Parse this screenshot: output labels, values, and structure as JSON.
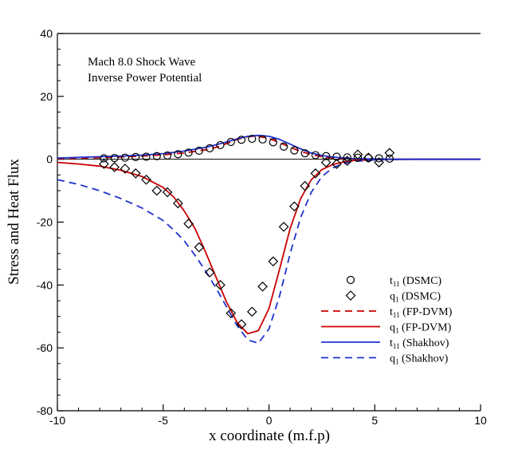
{
  "chart_data": {
    "type": "line",
    "annotation_lines": [
      "Mach 8.0 Shock Wave",
      "Inverse Power Potential"
    ],
    "xlabel": "x coordinate (m.f.p)",
    "ylabel": "Stress and Heat Flux",
    "xlim": [
      -10,
      10
    ],
    "ylim": [
      -80,
      40
    ],
    "xticks": [
      -10,
      -5,
      0,
      5,
      10
    ],
    "yticks": [
      -80,
      -60,
      -40,
      -20,
      0,
      20,
      40
    ],
    "x_minor_step": 1,
    "y_minor_step": 5,
    "grid": false,
    "legend_position": "bottom-right",
    "series": [
      {
        "name": "t11 (DSMC)",
        "legend_main": "t",
        "legend_sub": "11",
        "legend_rest": " (DSMC)",
        "style": "circle-markers",
        "color": "#000000",
        "x": [
          -7.8,
          -7.3,
          -6.8,
          -6.3,
          -5.8,
          -5.3,
          -4.8,
          -4.3,
          -3.8,
          -3.3,
          -2.8,
          -2.3,
          -1.8,
          -1.3,
          -0.8,
          -0.3,
          0.2,
          0.7,
          1.2,
          1.7,
          2.2,
          2.7,
          3.2,
          3.7,
          4.2,
          4.7,
          5.2,
          5.7
        ],
        "y": [
          0.3,
          0.4,
          0.5,
          0.7,
          0.8,
          1.0,
          1.2,
          1.6,
          2.1,
          2.7,
          3.5,
          4.5,
          5.5,
          6.2,
          6.5,
          6.3,
          5.4,
          4.0,
          2.8,
          1.9,
          1.3,
          1.0,
          0.8,
          0.6,
          0.5,
          0.4,
          0.3,
          0.2
        ]
      },
      {
        "name": "q1 (DSMC)",
        "legend_main": "q",
        "legend_sub": "1",
        "legend_rest": " (DSMC)",
        "style": "diamond-markers",
        "color": "#000000",
        "x": [
          -7.8,
          -7.3,
          -6.8,
          -6.3,
          -5.8,
          -5.3,
          -4.8,
          -4.3,
          -3.8,
          -3.3,
          -2.8,
          -2.3,
          -1.8,
          -1.3,
          -0.8,
          -0.3,
          0.2,
          0.7,
          1.2,
          1.7,
          2.2,
          2.7,
          3.2,
          3.7,
          4.2,
          4.7,
          5.2,
          5.7
        ],
        "y": [
          -1.5,
          -2.5,
          -3.0,
          -4.5,
          -6.5,
          -10.0,
          -10.5,
          -14.0,
          -20.5,
          -28.0,
          -36.0,
          -40.0,
          -49.0,
          -52.5,
          -48.5,
          -40.5,
          -32.5,
          -21.5,
          -15.0,
          -8.5,
          -4.5,
          -1.0,
          -1.5,
          -0.5,
          1.5,
          0.5,
          -1.0,
          2.0
        ]
      },
      {
        "name": "t11 (FP-DVM)",
        "legend_main": "t",
        "legend_sub": "11",
        "legend_rest": " (FP-DVM)",
        "style": "dashed",
        "color": "#cc0000",
        "x": [
          -10,
          -9,
          -8,
          -7,
          -6,
          -5,
          -4,
          -3,
          -2.5,
          -2,
          -1.5,
          -1,
          -0.5,
          0,
          0.5,
          1,
          1.5,
          2,
          2.5,
          3,
          4,
          5,
          6,
          7,
          8,
          9,
          10
        ],
        "y": [
          0.2,
          0.3,
          0.5,
          0.7,
          1.0,
          1.4,
          2.0,
          3.0,
          3.8,
          5.0,
          6.3,
          7.2,
          7.3,
          6.6,
          5.3,
          3.8,
          2.5,
          1.5,
          0.8,
          0.4,
          0.1,
          0.0,
          0.0,
          0.0,
          0.0,
          0.0,
          0.0
        ]
      },
      {
        "name": "q1 (FP-DVM)",
        "legend_main": "q",
        "legend_sub": "1",
        "legend_rest": " (FP-DVM)",
        "style": "solid",
        "color": "#cc0000",
        "x": [
          -10,
          -9,
          -8,
          -7,
          -6,
          -5,
          -4.5,
          -4,
          -3.5,
          -3,
          -2.5,
          -2,
          -1.5,
          -1,
          -0.5,
          0,
          0.5,
          1,
          1.5,
          2,
          2.5,
          3,
          3.5,
          4,
          5,
          6,
          7,
          8,
          9,
          10
        ],
        "y": [
          -1.0,
          -1.5,
          -2.2,
          -3.5,
          -5.5,
          -9.0,
          -12.0,
          -16.5,
          -22.0,
          -29.5,
          -37.5,
          -45.5,
          -52.0,
          -55.5,
          -54.5,
          -47.5,
          -35.0,
          -22.0,
          -12.5,
          -6.5,
          -3.3,
          -1.7,
          -0.9,
          -0.4,
          -0.1,
          0.0,
          0.0,
          0.0,
          0.0,
          0.0
        ]
      },
      {
        "name": "t11 (Shakhov)",
        "legend_main": "t",
        "legend_sub": "11",
        "legend_rest": " (Shakhov)",
        "style": "solid",
        "color": "#2233cc",
        "x": [
          -10,
          -9,
          -8,
          -7,
          -6,
          -5,
          -4,
          -3,
          -2.5,
          -2,
          -1.5,
          -1,
          -0.5,
          0,
          0.5,
          1,
          1.5,
          2,
          2.5,
          3,
          4,
          5,
          6,
          7,
          8,
          9,
          10
        ],
        "y": [
          0.4,
          0.6,
          0.8,
          1.0,
          1.3,
          1.8,
          2.6,
          3.8,
          4.6,
          5.5,
          6.5,
          7.3,
          7.6,
          7.3,
          6.3,
          4.8,
          3.3,
          2.0,
          1.2,
          0.7,
          0.2,
          0.1,
          0.0,
          0.0,
          0.0,
          0.0,
          0.0
        ]
      },
      {
        "name": "q1 (Shakhov)",
        "legend_main": "q",
        "legend_sub": "1",
        "legend_rest": " (Shakhov)",
        "style": "dashed",
        "color": "#2233cc",
        "x": [
          -10,
          -9,
          -8,
          -7,
          -6,
          -5,
          -4.5,
          -4,
          -3.5,
          -3,
          -2.5,
          -2,
          -1.5,
          -1,
          -0.5,
          0,
          0.5,
          1,
          1.5,
          2,
          2.5,
          3,
          3.5,
          4,
          5,
          6,
          7,
          8,
          9,
          10
        ],
        "y": [
          -6.5,
          -8.0,
          -10.0,
          -12.5,
          -15.5,
          -19.5,
          -22.5,
          -26.0,
          -30.5,
          -35.5,
          -41.0,
          -47.0,
          -53.0,
          -57.5,
          -58.5,
          -54.0,
          -43.5,
          -30.0,
          -18.5,
          -10.5,
          -5.5,
          -2.8,
          -1.4,
          -0.7,
          -0.2,
          -0.1,
          0.0,
          0.0,
          0.0,
          0.0
        ]
      }
    ]
  }
}
